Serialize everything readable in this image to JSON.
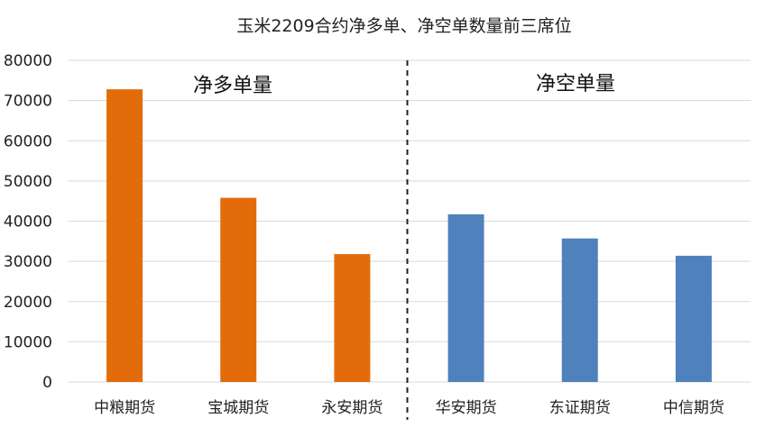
{
  "chart_data": {
    "type": "bar",
    "title": "玉米2209合约净多单、净空单数量前三席位",
    "xlabel": "",
    "ylabel": "",
    "ylim": [
      0,
      80000
    ],
    "yticks": [
      0,
      10000,
      20000,
      30000,
      40000,
      50000,
      60000,
      70000,
      80000
    ],
    "grid": true,
    "legend": "none",
    "categories": [
      "中粮期货",
      "宝城期货",
      "永安期货",
      "华安期货",
      "东证期货",
      "中信期货"
    ],
    "values": [
      72800,
      45800,
      31800,
      41700,
      35700,
      31400
    ],
    "groups": [
      {
        "label": "净多单量",
        "indices": [
          0,
          1,
          2
        ],
        "color": "#e36c0a"
      },
      {
        "label": "净空单量",
        "indices": [
          3,
          4,
          5
        ],
        "color": "#4f81bd"
      }
    ],
    "divider": "dashed vertical line between 永安期货 and 华安期货"
  }
}
